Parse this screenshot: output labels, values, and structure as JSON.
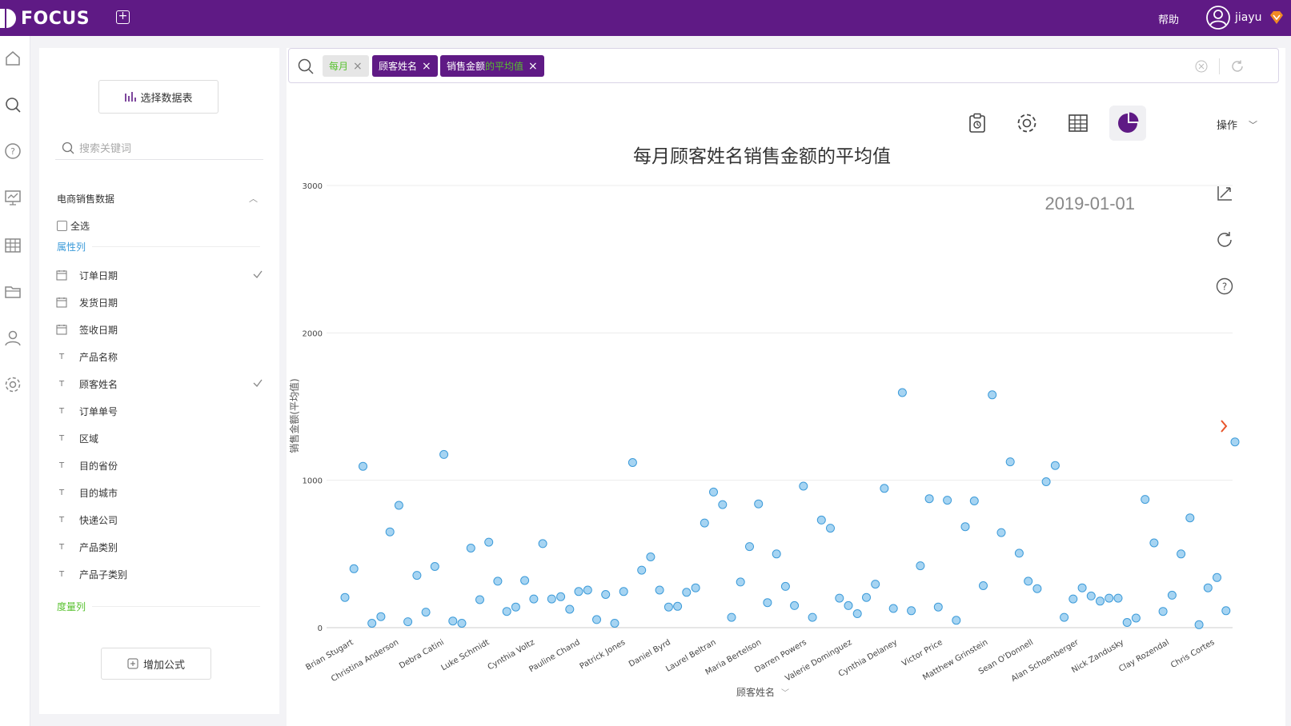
{
  "app": {
    "logo": "FOCUS",
    "help": "帮助",
    "user": "jiayu"
  },
  "colors": {
    "brand": "#5f1a85",
    "accent_green": "#57c12e",
    "point_fill": "#a6d4f2",
    "point_stroke": "#3d9bd9",
    "arrow": "#e8542a"
  },
  "nav": [
    "home-icon",
    "search-icon",
    "help-icon",
    "board-icon",
    "table-icon",
    "folder-icon",
    "user-icon",
    "settings-icon"
  ],
  "sidebar": {
    "select_table": "选择数据表",
    "search_placeholder": "搜索关键词",
    "dataset": "电商销售数据",
    "select_all": "全选",
    "attr_label": "属性列",
    "measure_label": "度量列",
    "add_formula": "增加公式",
    "fields": [
      {
        "label": "订单日期",
        "type": "date",
        "checked": true
      },
      {
        "label": "发货日期",
        "type": "date",
        "checked": false
      },
      {
        "label": "签收日期",
        "type": "date",
        "checked": false
      },
      {
        "label": "产品名称",
        "type": "text",
        "checked": false
      },
      {
        "label": "顾客姓名",
        "type": "text",
        "checked": true
      },
      {
        "label": "订单单号",
        "type": "text",
        "checked": false
      },
      {
        "label": "区域",
        "type": "text",
        "checked": false
      },
      {
        "label": "目的省份",
        "type": "text",
        "checked": false
      },
      {
        "label": "目的城市",
        "type": "text",
        "checked": false
      },
      {
        "label": "快递公司",
        "type": "text",
        "checked": false
      },
      {
        "label": "产品类别",
        "type": "text",
        "checked": false
      },
      {
        "label": "产品子类别",
        "type": "text",
        "checked": false
      }
    ]
  },
  "search": {
    "tokens": [
      {
        "text": "每月",
        "style": "light"
      },
      {
        "text": "顾客姓名",
        "style": "dark"
      },
      {
        "text_a": "销售金额",
        "text_b": "的平均值",
        "style": "dark"
      }
    ]
  },
  "toolbar": {
    "ops": "操作"
  },
  "chart_data": {
    "type": "scatter",
    "title": "每月顾客姓名销售金额的平均值",
    "subtitle_date": "2019-01-01",
    "xlabel": "顾客姓名",
    "ylabel": "销售金额(平均值)",
    "ylim": [
      0,
      3000
    ],
    "yticks": [
      0,
      1000,
      2000,
      3000
    ],
    "grid": true,
    "xtick_labels": [
      "Brian Stugart",
      "Christina Anderson",
      "Debra Catini",
      "Luke Schmidt",
      "Cynthia Voltz",
      "Pauline Chand",
      "Patrick Jones",
      "Daniel Byrd",
      "Laurel Beltran",
      "Maria Bertelson",
      "Darren Powers",
      "Valerie Dominguez",
      "Cynthia Delaney",
      "Victor Price",
      "Matthew Grinstein",
      "Sean O'Donnell",
      "Alan Schoenberger",
      "Nick Zandusky",
      "Clay Rozendal",
      "Chris Cortes"
    ],
    "values": [
      205,
      400,
      1095,
      30,
      75,
      650,
      830,
      40,
      355,
      105,
      415,
      1175,
      45,
      30,
      540,
      190,
      580,
      315,
      110,
      140,
      320,
      195,
      570,
      195,
      210,
      125,
      245,
      255,
      55,
      225,
      30,
      245,
      1120,
      390,
      480,
      255,
      140,
      145,
      240,
      270,
      710,
      920,
      835,
      70,
      310,
      550,
      840,
      170,
      500,
      280,
      150,
      960,
      70,
      730,
      675,
      200,
      150,
      95,
      205,
      295,
      945,
      130,
      1595,
      115,
      420,
      875,
      140,
      865,
      50,
      685,
      860,
      285,
      1580,
      645,
      1125,
      505,
      315,
      265,
      990,
      1100,
      70,
      195,
      270,
      215,
      180,
      200,
      200,
      35,
      65,
      870,
      575,
      110,
      220,
      500,
      745,
      20,
      270,
      340,
      115,
      1260
    ]
  }
}
